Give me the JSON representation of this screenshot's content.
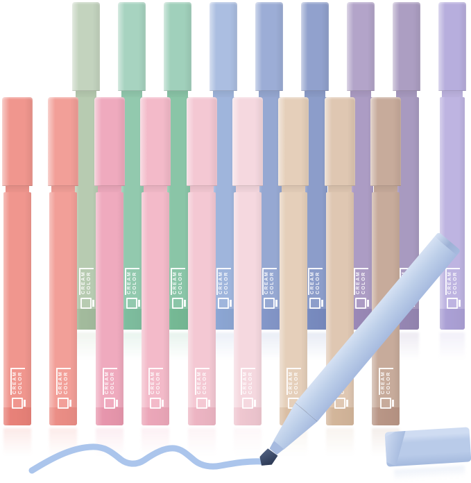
{
  "brand": {
    "line1": "CREAM",
    "line2": "COLOR"
  },
  "pens": {
    "back_row": [
      {
        "name": "sage green",
        "cap": "#c3d3be",
        "body": "#b7cbb1",
        "deep": "#9fb899"
      },
      {
        "name": "mint green",
        "cap": "#a7d3c0",
        "body": "#92c9ae",
        "deep": "#7abb9b"
      },
      {
        "name": "jade green",
        "cap": "#a0d0bb",
        "body": "#8ac5a7",
        "deep": "#71b791"
      },
      {
        "name": "sky blue",
        "cap": "#abbee1",
        "body": "#9fb5dc",
        "deep": "#88a3d2"
      },
      {
        "name": "periwinkle",
        "cap": "#9cadd6",
        "body": "#96a8d2",
        "deep": "#8093c7"
      },
      {
        "name": "dusty blue",
        "cap": "#91a1cd",
        "body": "#8c9dca",
        "deep": "#7487bd"
      },
      {
        "name": "lilac",
        "cap": "#b3a4c9",
        "body": "#ac9cc4",
        "deep": "#9684b4"
      },
      {
        "name": "mauve",
        "cap": "#ac9ec2",
        "body": "#a89ac0",
        "deep": "#9282b0"
      },
      {
        "name": "lavender",
        "cap": "#b7aedd",
        "body": "#beb4e1",
        "deep": "#a79cd3"
      }
    ],
    "front_row": [
      {
        "name": "coral",
        "body": "#f0968e",
        "deep": "#e77d74"
      },
      {
        "name": "salmon",
        "body": "#f29f98",
        "deep": "#ea8a82"
      },
      {
        "name": "rose pink",
        "body": "#efaabe",
        "deep": "#e692a9"
      },
      {
        "name": "pink",
        "body": "#f3bac9",
        "deep": "#eba3b6"
      },
      {
        "name": "blush",
        "body": "#f4c8d3",
        "deep": "#ecb1c0"
      },
      {
        "name": "light blush",
        "body": "#f5d8df",
        "deep": "#eec3cd"
      },
      {
        "name": "cream tan",
        "body": "#e5cfba",
        "deep": "#d8bb9f"
      },
      {
        "name": "beige",
        "body": "#dfc7b2",
        "deep": "#d1b295"
      },
      {
        "name": "taupe",
        "body": "#c7ab9b",
        "deep": "#b69181"
      }
    ],
    "held_pen": {
      "name": "powder blue",
      "body": "#bdcfe9",
      "highlight": "#d5e1f3",
      "shade": "#a6badf",
      "butt": "#9db1d5",
      "tip_dark": "#2f3c58",
      "tip_light": "#4e5e7e"
    },
    "floor_cap": {
      "main": "#b9cbe9",
      "top": "#cfdcf2",
      "end": "#a5bade"
    }
  },
  "ink": {
    "color": "#abc5ec"
  }
}
